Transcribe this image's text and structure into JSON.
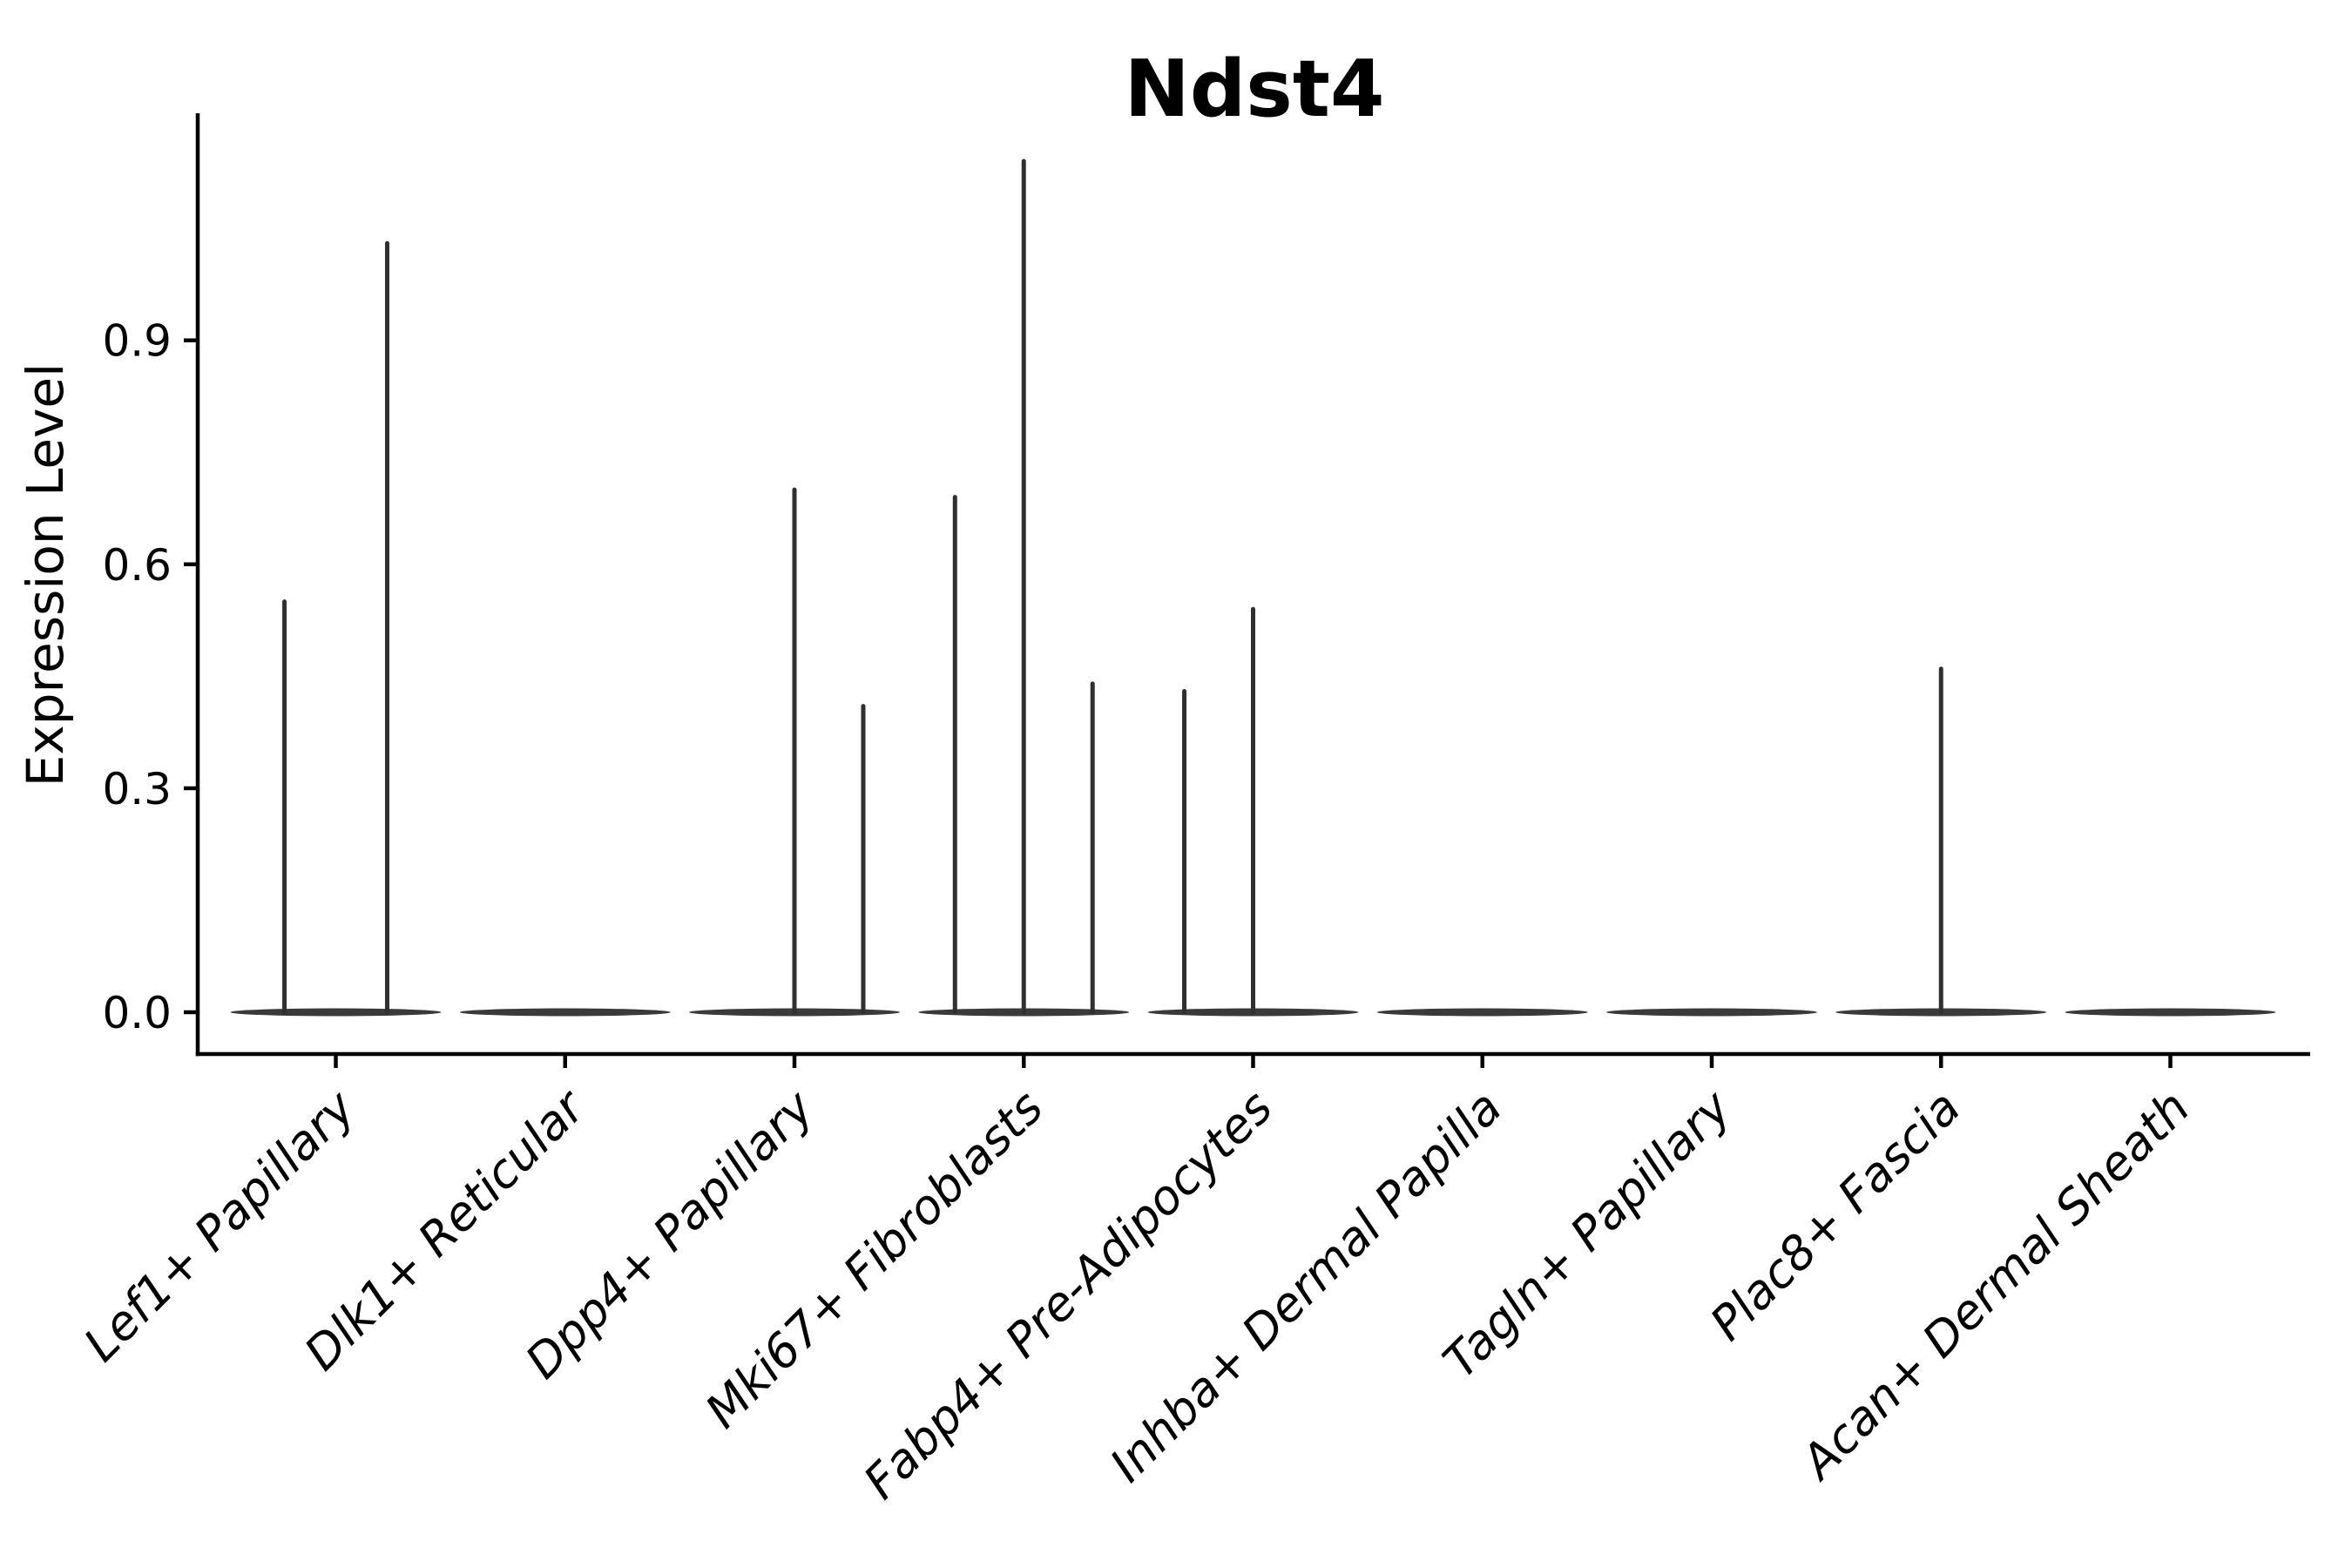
{
  "chart_data": {
    "type": "violin",
    "title": "Ndst4",
    "xlabel": "",
    "ylabel": "Expression Level",
    "grid": false,
    "legend_position": "none",
    "ylim": [
      -0.06,
      1.19
    ],
    "yticks": [
      "0.0",
      "0.3",
      "0.6",
      "0.9"
    ],
    "ytick_values": [
      0.0,
      0.3,
      0.6,
      0.9
    ],
    "categories": [
      "Lef1+ Papillary",
      "Dlk1+ Reticular",
      "Dpp4+ Papillary",
      "Mki67+ Fibroblasts",
      "Fabp4+ Pre-Adipocytes",
      "Inhba+ Dermal Papilla",
      "Tagln+ Papillary",
      "Plac8+ Fascia",
      "Acan+ Dermal Sheath"
    ],
    "series": [
      {
        "name": "Lef1+ Papillary",
        "baseline_value": 0.0,
        "spikes": [
          {
            "offset": -0.224,
            "max": 0.55
          },
          {
            "offset": 0.224,
            "max": 1.03
          }
        ]
      },
      {
        "name": "Dlk1+ Reticular",
        "baseline_value": 0.0,
        "spikes": []
      },
      {
        "name": "Dpp4+ Papillary",
        "baseline_value": 0.0,
        "spikes": [
          {
            "offset": 0,
            "max": 0.7
          },
          {
            "offset": 0.3,
            "max": 0.41
          }
        ]
      },
      {
        "name": "Mki67+ Fibroblasts",
        "baseline_value": 0.0,
        "spikes": [
          {
            "offset": -0.3,
            "max": 0.69
          },
          {
            "offset": 0,
            "max": 1.14
          },
          {
            "offset": 0.3,
            "max": 0.44
          }
        ]
      },
      {
        "name": "Fabp4+ Pre-Adipocytes",
        "baseline_value": 0.0,
        "spikes": [
          {
            "offset": -0.3,
            "max": 0.43
          },
          {
            "offset": 0,
            "max": 0.54
          }
        ]
      },
      {
        "name": "Inhba+ Dermal Papilla",
        "baseline_value": 0.0,
        "spikes": []
      },
      {
        "name": "Tagln+ Papillary",
        "baseline_value": 0.0,
        "spikes": []
      },
      {
        "name": "Plac8+ Fascia",
        "baseline_value": 0.0,
        "spikes": [
          {
            "offset": 0,
            "max": 0.46
          }
        ]
      },
      {
        "name": "Acan+ Dermal Sheath",
        "baseline_value": 0.0,
        "spikes": []
      }
    ],
    "colors": {
      "violin_fill": "#3a3a3a",
      "spike_stroke": "#303030",
      "axis": "#000000",
      "background": "#ffffff"
    }
  }
}
